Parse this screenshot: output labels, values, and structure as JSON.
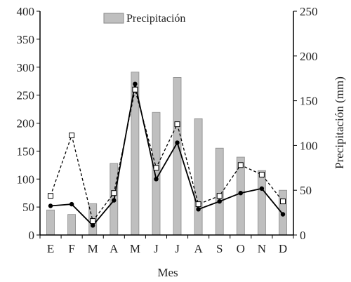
{
  "chart_data": {
    "type": "bar",
    "categories": [
      "E",
      "F",
      "M",
      "A",
      "M",
      "J",
      "J",
      "A",
      "S",
      "O",
      "N",
      "D"
    ],
    "xlabel": "Mes",
    "ylabel": "",
    "y2label": "Precipitación (mm)",
    "ylim": [
      0,
      400
    ],
    "y2lim": [
      0,
      250
    ],
    "yticks": [
      "0",
      "50",
      "100",
      "150",
      "200",
      "250",
      "300",
      "350",
      "400"
    ],
    "y2ticks": [
      "0",
      "50",
      "100",
      "150",
      "200",
      "250"
    ],
    "legend": {
      "label": "Precipitación",
      "position": "top-center"
    },
    "bars": {
      "name": "Precipitación",
      "axis": "right",
      "values": [
        28,
        23,
        35,
        80,
        182,
        137,
        176,
        130,
        97,
        87,
        72,
        50
      ],
      "color": "#bfbfbf"
    },
    "series": [
      {
        "axis": "left",
        "style": "solid",
        "marker": "filled-circle",
        "color": "#000000",
        "values": [
          52,
          55,
          17,
          62,
          270,
          100,
          165,
          46,
          60,
          75,
          83,
          37
        ]
      },
      {
        "axis": "left",
        "style": "dashed",
        "marker": "open-square",
        "color": "#000000",
        "values": [
          70,
          178,
          25,
          75,
          260,
          120,
          198,
          55,
          70,
          125,
          108,
          60
        ]
      }
    ]
  }
}
